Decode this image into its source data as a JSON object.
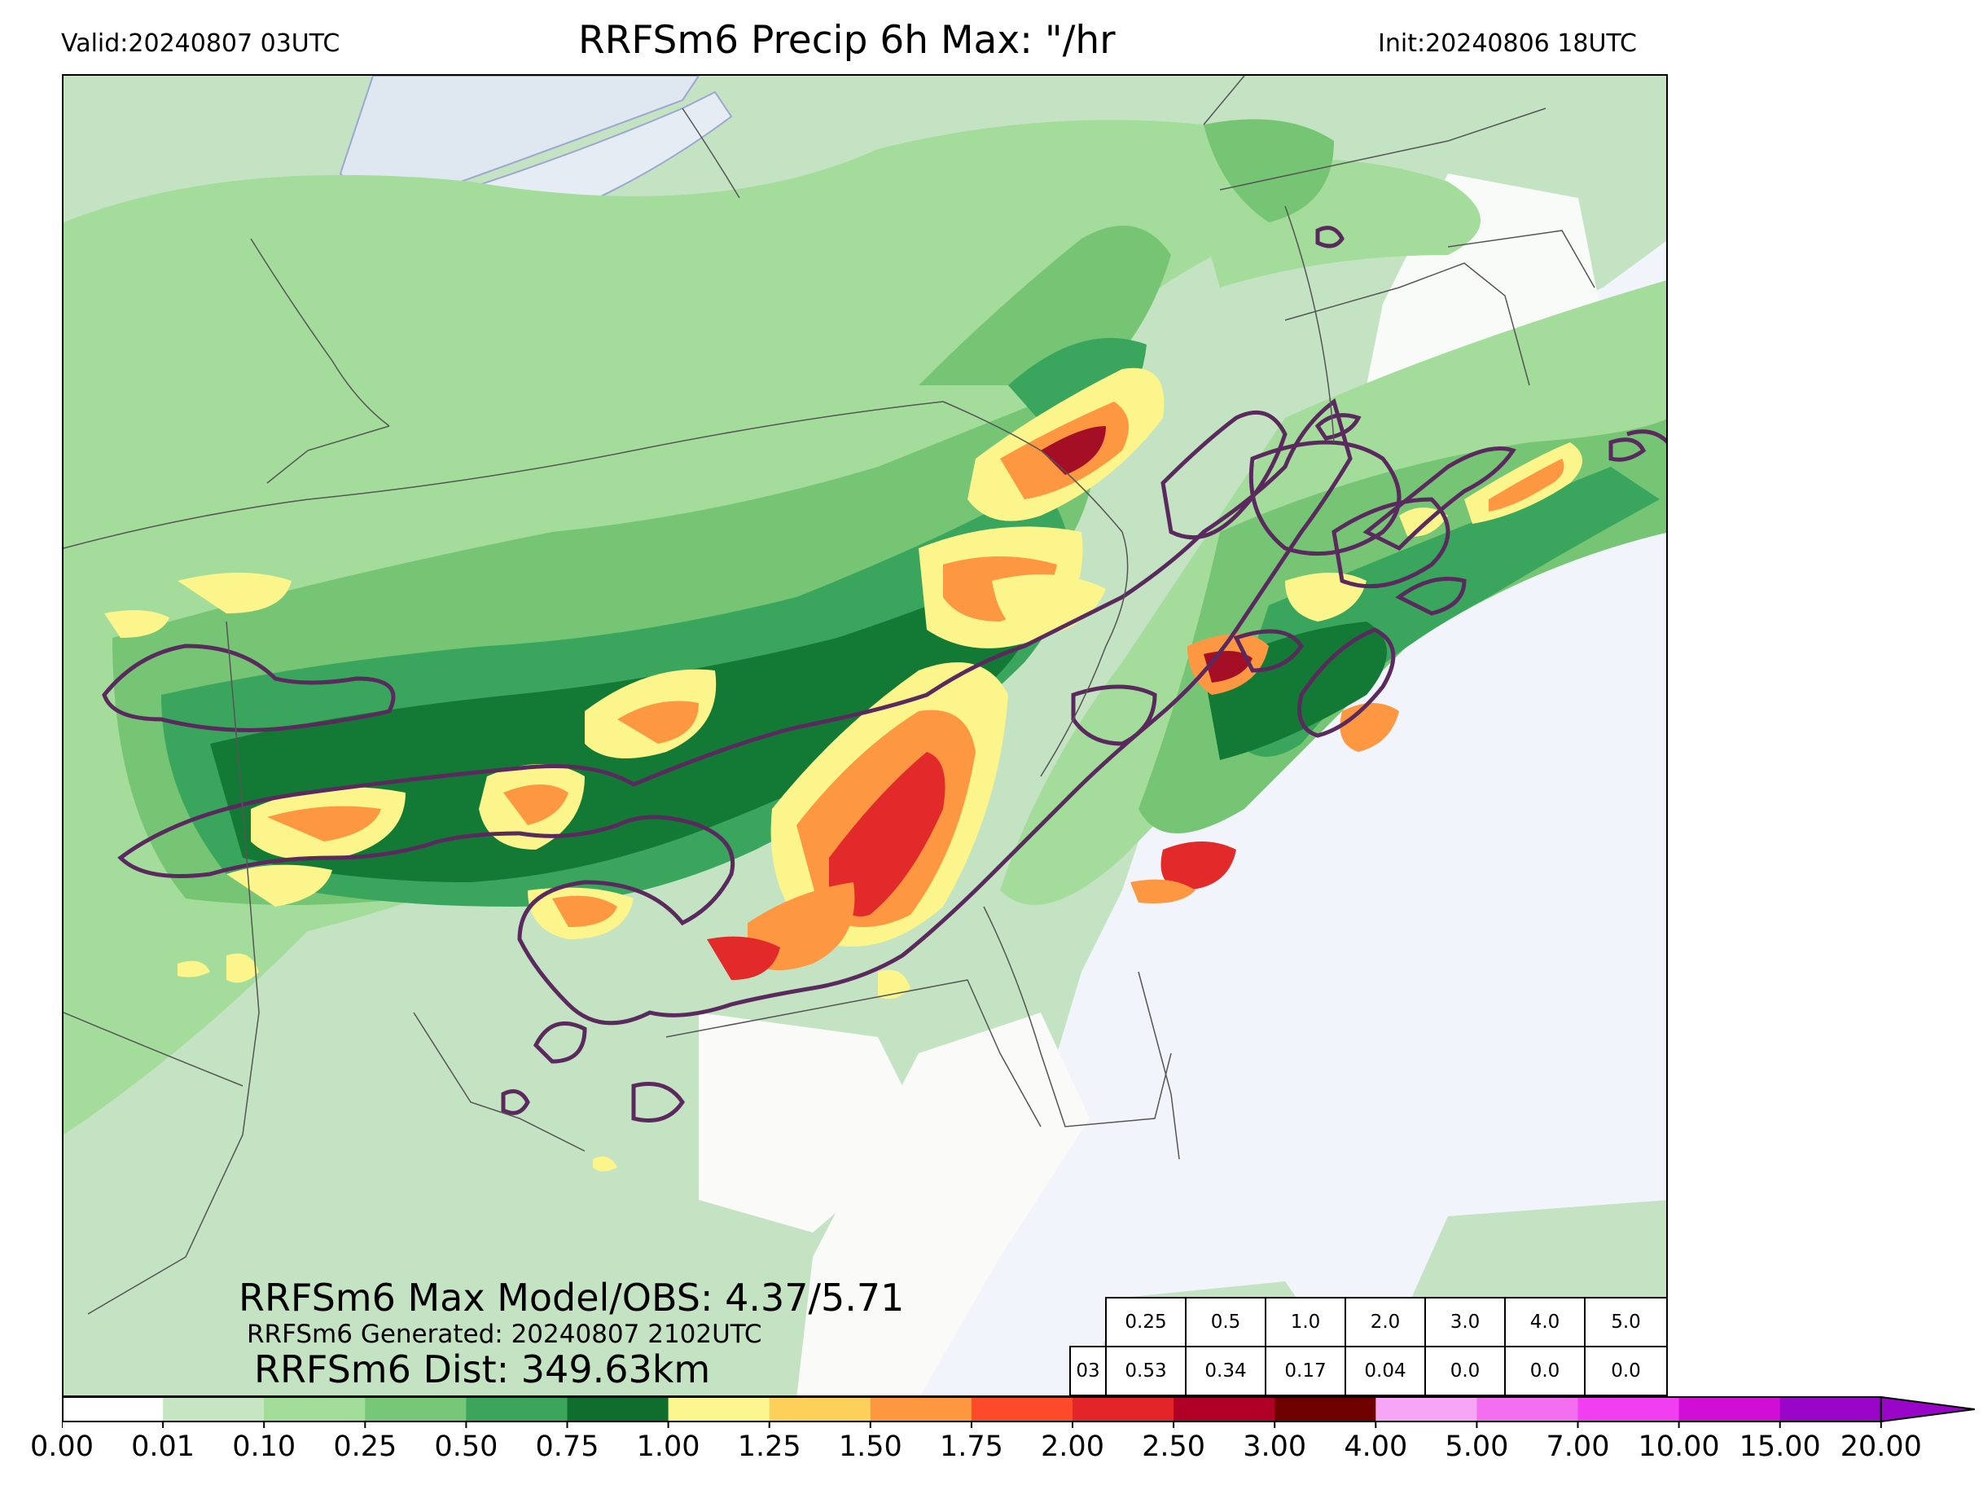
{
  "header": {
    "valid": "Valid:20240807 03UTC",
    "title": "RRFSm6 Precip 6h Max: \"/hr",
    "init": "Init:20240806 18UTC"
  },
  "stats": {
    "max_line": "RRFSm6 Max Model/OBS: 4.37/5.71",
    "generated_line": "RRFSm6 Generated: 20240807 2102UTC",
    "dist_line": "RRFSm6 Dist: 349.63km"
  },
  "threshold_table": {
    "thresholds": [
      "0.25",
      "0.5",
      "1.0",
      "2.0",
      "3.0",
      "4.0",
      "5.0"
    ],
    "row_label": "03",
    "values": [
      "0.53",
      "0.34",
      "0.17",
      "0.04",
      "0.0",
      "0.0",
      "0.0"
    ]
  },
  "colorbar": {
    "ticks": [
      "0.00",
      "0.01",
      "0.10",
      "0.25",
      "0.50",
      "0.75",
      "1.00",
      "1.25",
      "1.50",
      "1.75",
      "2.00",
      "2.50",
      "3.00",
      "4.00",
      "5.00",
      "7.00",
      "10.00",
      "15.00",
      "20.00"
    ],
    "colors": [
      "#ffffff",
      "#c6e6c3",
      "#a2dc99",
      "#76c777",
      "#3ba55c",
      "#0f6e2e",
      "#fbf68d",
      "#fdd05a",
      "#fd9841",
      "#fc4a2b",
      "#e3252a",
      "#b10026",
      "#6e0000",
      "#f7a5f5",
      "#f36ff0",
      "#f13ef0",
      "#d10ed6",
      "#9a06c8"
    ],
    "extend": "max"
  },
  "map": {
    "colors": {
      "ocean": "#f1f4fa",
      "land_nonzero": "#c4e3c2",
      "light_green": "#a4dc9b",
      "mid_green": "#75c575",
      "green": "#3aa55c",
      "dark_green": "#137a36",
      "yellow": "#fbf58c",
      "orange_light": "#fdd05a",
      "orange": "#fd9741",
      "red": "#e22a2a",
      "dark_red": "#a50f26",
      "obs_contour": "#5a2a5e",
      "borders": "#555555"
    }
  }
}
